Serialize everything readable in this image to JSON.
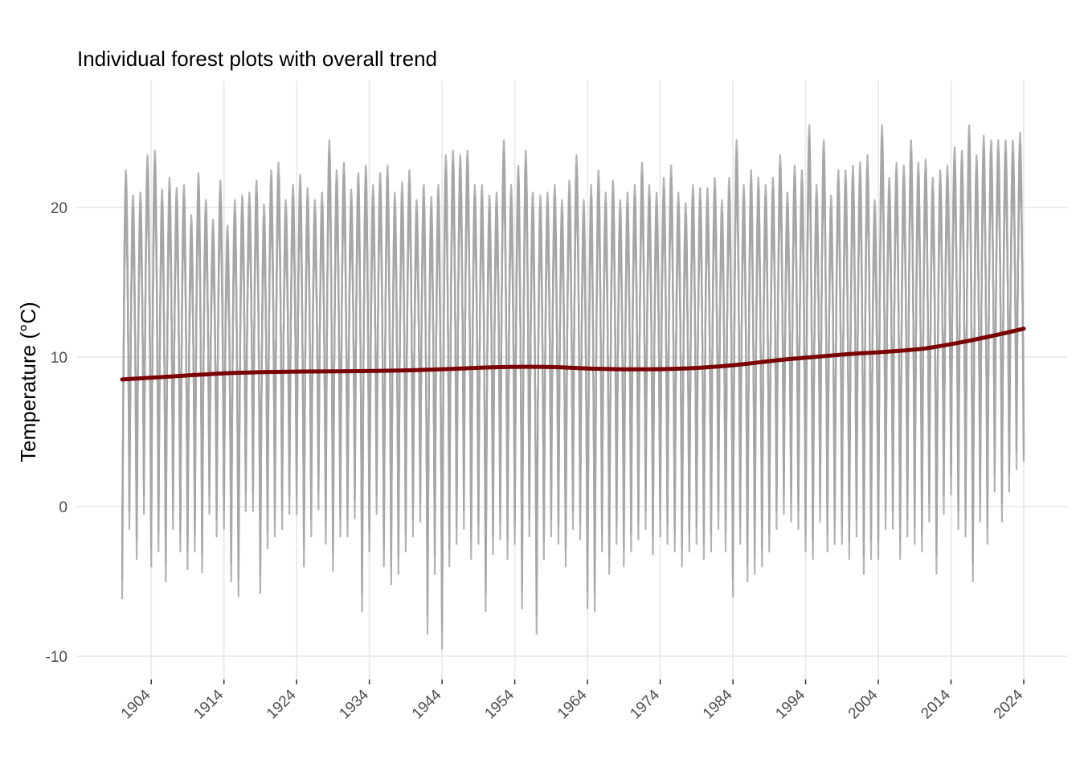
{
  "chart_data": {
    "type": "line",
    "title": "Individual forest plots with overall trend",
    "xlabel": "",
    "ylabel": "Temperature (°C)",
    "xlim": [
      1900,
      2024
    ],
    "ylim": [
      -11.5,
      28.5
    ],
    "x_ticks": [
      1904,
      1914,
      1924,
      1934,
      1944,
      1954,
      1964,
      1974,
      1984,
      1994,
      2004,
      2014,
      2024
    ],
    "y_ticks": [
      -10,
      0,
      10,
      20
    ],
    "grid": true,
    "legend": "none",
    "background": "#ffffff",
    "colors": {
      "individual_plots": "#a6a6a6",
      "trend": "#7b0000",
      "grid": "#ebebeb"
    },
    "series": [
      {
        "x": [
          1900,
          1905,
          1910,
          1915,
          1920,
          1925,
          1930,
          1935,
          1940,
          1945,
          1950,
          1955,
          1960,
          1965,
          1970,
          1975,
          1980,
          1985,
          1990,
          1995,
          2000,
          2005,
          2010,
          2015,
          2020,
          2024
        ],
        "values": [
          8.5,
          8.65,
          8.8,
          8.93,
          9.0,
          9.03,
          9.05,
          9.07,
          9.12,
          9.2,
          9.3,
          9.35,
          9.32,
          9.22,
          9.18,
          9.2,
          9.3,
          9.5,
          9.78,
          10.0,
          10.2,
          10.35,
          10.55,
          10.95,
          11.45,
          11.9
        ]
      }
    ],
    "individual_plots": {
      "description_values": "annual cycles per plot, one min and one max per year",
      "years": [
        1900,
        1901,
        1902,
        1903,
        1904,
        1905,
        1906,
        1907,
        1908,
        1909,
        1910,
        1911,
        1912,
        1913,
        1914,
        1915,
        1916,
        1917,
        1918,
        1919,
        1920,
        1921,
        1922,
        1923,
        1924,
        1925,
        1926,
        1927,
        1928,
        1929,
        1930,
        1931,
        1932,
        1933,
        1934,
        1935,
        1936,
        1937,
        1938,
        1939,
        1940,
        1941,
        1942,
        1943,
        1944,
        1945,
        1946,
        1947,
        1948,
        1949,
        1950,
        1951,
        1952,
        1953,
        1954,
        1955,
        1956,
        1957,
        1958,
        1959,
        1960,
        1961,
        1962,
        1963,
        1964,
        1965,
        1966,
        1967,
        1968,
        1969,
        1970,
        1971,
        1972,
        1973,
        1974,
        1975,
        1976,
        1977,
        1978,
        1979,
        1980,
        1981,
        1982,
        1983,
        1984,
        1985,
        1986,
        1987,
        1988,
        1989,
        1990,
        1991,
        1992,
        1993,
        1994,
        1995,
        1996,
        1997,
        1998,
        1999,
        2000,
        2001,
        2002,
        2003,
        2004,
        2005,
        2006,
        2007,
        2008,
        2009,
        2010,
        2011,
        2012,
        2013,
        2014,
        2015,
        2016,
        2017,
        2018,
        2019,
        2020,
        2021,
        2022,
        2023
      ],
      "annual_max": [
        22.5,
        20.8,
        21.0,
        23.5,
        23.8,
        21.2,
        22.0,
        21.3,
        21.5,
        19.5,
        22.3,
        20.5,
        19.2,
        21.8,
        18.8,
        20.5,
        20.8,
        21.0,
        21.8,
        20.2,
        22.5,
        23.0,
        20.5,
        21.5,
        22.2,
        21.3,
        20.5,
        21.0,
        24.5,
        22.5,
        23.0,
        21.2,
        22.3,
        22.8,
        21.5,
        22.3,
        22.8,
        21.0,
        21.7,
        22.5,
        20.5,
        21.5,
        20.7,
        21.5,
        23.5,
        23.8,
        23.5,
        23.8,
        21.5,
        21.5,
        20.8,
        21.0,
        24.5,
        21.5,
        22.8,
        23.8,
        21.0,
        20.8,
        21.0,
        21.5,
        20.5,
        21.8,
        23.5,
        20.5,
        21.5,
        22.5,
        21.0,
        21.8,
        20.5,
        21.0,
        21.5,
        23.0,
        21.5,
        21.0,
        22.0,
        22.8,
        21.0,
        20.3,
        21.5,
        21.3,
        21.3,
        22.0,
        20.5,
        22.0,
        24.5,
        21.5,
        22.5,
        22.0,
        21.5,
        22.0,
        23.5,
        21.0,
        22.8,
        22.5,
        25.5,
        21.5,
        24.5,
        20.8,
        22.5,
        22.5,
        22.8,
        23.0,
        23.5,
        20.5,
        25.5,
        22.0,
        23.0,
        22.8,
        24.5,
        23.0,
        23.2,
        22.0,
        22.5,
        22.8,
        24.0,
        23.8,
        25.5,
        23.5,
        24.8,
        24.5,
        24.5,
        24.5,
        24.5,
        25.0
      ],
      "annual_min": [
        -6.2,
        -1.5,
        -3.5,
        -0.5,
        -4.0,
        -3.0,
        -5.0,
        -1.5,
        -3.0,
        -4.2,
        -3.0,
        -4.4,
        -0.5,
        -2.0,
        -1.5,
        -5.0,
        -6.0,
        -0.3,
        -0.3,
        -5.8,
        -2.8,
        -2.0,
        -1.5,
        -0.5,
        -0.5,
        -4.0,
        -2.0,
        -0.2,
        -2.5,
        -4.3,
        -2.0,
        -2.0,
        -0.8,
        -7.0,
        -3.0,
        -0.5,
        -4.0,
        -5.2,
        -4.5,
        -3.0,
        -2.0,
        -1.0,
        -8.5,
        -4.5,
        -9.5,
        -4.0,
        -2.5,
        -1.5,
        -3.5,
        -2.5,
        -7.0,
        -3.2,
        -2.2,
        -3.5,
        -2.5,
        -6.8,
        -2.0,
        -8.5,
        -3.5,
        -2.0,
        -2.5,
        -4.0,
        -1.5,
        -2.2,
        -6.8,
        -7.0,
        -3.0,
        -4.5,
        -2.5,
        -4.0,
        -3.0,
        -2.2,
        -1.5,
        -3.2,
        -2.0,
        -2.5,
        -3.0,
        -4.0,
        -3.0,
        -2.5,
        -3.5,
        -3.0,
        -1.5,
        -3.0,
        -6.0,
        -2.5,
        -5.0,
        -4.5,
        -4.0,
        -3.0,
        -1.5,
        -0.5,
        -1.0,
        -1.5,
        -3.0,
        -3.5,
        -1.0,
        -3.0,
        -2.5,
        -2.5,
        -3.5,
        -2.0,
        -4.5,
        -3.5,
        -3.5,
        -1.5,
        -1.5,
        -3.5,
        -2.0,
        -2.5,
        -3.0,
        -1.0,
        -4.5,
        -0.5,
        0.8,
        -1.5,
        -2.0,
        -5.0,
        -1.0,
        -2.5,
        1.0,
        -1.0,
        1.0,
        2.5
      ]
    }
  }
}
